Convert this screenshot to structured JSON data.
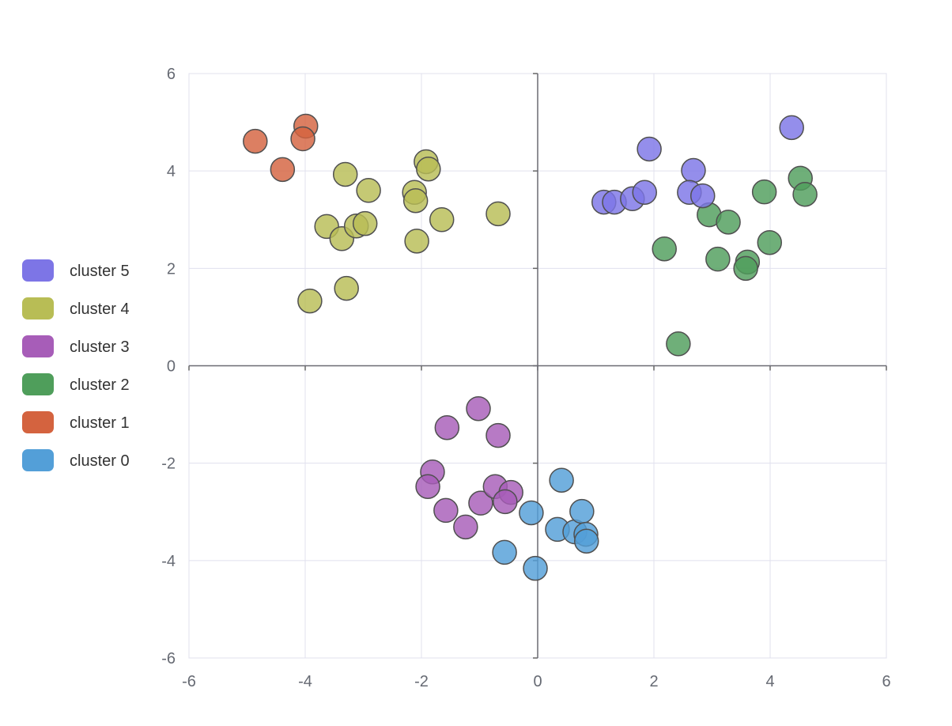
{
  "chart_data": {
    "type": "scatter",
    "title": "",
    "xlabel": "",
    "ylabel": "",
    "xlim": [
      -6,
      6
    ],
    "ylim": [
      -6,
      6
    ],
    "xticks": [
      "-6",
      "-4",
      "-2",
      "0",
      "2",
      "4",
      "6"
    ],
    "yticks": [
      "6",
      "4",
      "2",
      "0",
      "-2",
      "-4",
      "-6"
    ],
    "grid": true,
    "legend_position": "left",
    "series": [
      {
        "name": "cluster 5",
        "color": "#7d75e6",
        "points": [
          [
            1.14,
            3.36
          ],
          [
            1.32,
            3.36
          ],
          [
            1.63,
            3.43
          ],
          [
            1.84,
            3.56
          ],
          [
            1.92,
            4.45
          ],
          [
            2.68,
            4.01
          ],
          [
            2.61,
            3.56
          ],
          [
            2.84,
            3.49
          ],
          [
            4.37,
            4.89
          ]
        ]
      },
      {
        "name": "cluster 4",
        "color": "#b8bd55",
        "points": [
          [
            -3.31,
            3.93
          ],
          [
            -2.91,
            3.6
          ],
          [
            -3.63,
            2.86
          ],
          [
            -3.37,
            2.61
          ],
          [
            -3.12,
            2.87
          ],
          [
            -2.97,
            2.92
          ],
          [
            -3.92,
            1.33
          ],
          [
            -3.29,
            1.59
          ],
          [
            -2.12,
            3.56
          ],
          [
            -2.1,
            3.39
          ],
          [
            -1.92,
            4.19
          ],
          [
            -1.88,
            4.04
          ],
          [
            -2.08,
            2.56
          ],
          [
            -1.65,
            3.0
          ],
          [
            -0.68,
            3.12
          ]
        ]
      },
      {
        "name": "cluster 3",
        "color": "#a75db8",
        "points": [
          [
            -1.02,
            -0.88
          ],
          [
            -1.56,
            -1.27
          ],
          [
            -0.68,
            -1.43
          ],
          [
            -1.81,
            -2.18
          ],
          [
            -1.89,
            -2.48
          ],
          [
            -1.58,
            -2.97
          ],
          [
            -1.24,
            -3.31
          ],
          [
            -0.98,
            -2.82
          ],
          [
            -0.73,
            -2.48
          ],
          [
            -0.46,
            -2.6
          ],
          [
            -0.56,
            -2.79
          ]
        ]
      },
      {
        "name": "cluster 2",
        "color": "#4f9e5b",
        "points": [
          [
            2.18,
            2.4
          ],
          [
            2.95,
            3.1
          ],
          [
            3.28,
            2.95
          ],
          [
            3.1,
            2.19
          ],
          [
            3.61,
            2.13
          ],
          [
            3.58,
            2.0
          ],
          [
            3.9,
            3.57
          ],
          [
            3.99,
            2.53
          ],
          [
            4.52,
            3.85
          ],
          [
            4.6,
            3.52
          ],
          [
            2.42,
            0.45
          ]
        ]
      },
      {
        "name": "cluster 1",
        "color": "#d4633f",
        "points": [
          [
            -4.86,
            4.61
          ],
          [
            -4.39,
            4.03
          ],
          [
            -3.99,
            4.92
          ],
          [
            -4.04,
            4.66
          ]
        ]
      },
      {
        "name": "cluster 0",
        "color": "#539fd8",
        "points": [
          [
            0.41,
            -2.35
          ],
          [
            -0.11,
            -3.02
          ],
          [
            0.34,
            -3.36
          ],
          [
            0.64,
            -3.41
          ],
          [
            0.76,
            -2.99
          ],
          [
            0.83,
            -3.46
          ],
          [
            0.84,
            -3.6
          ],
          [
            -0.57,
            -3.83
          ],
          [
            -0.04,
            -4.16
          ]
        ]
      }
    ]
  }
}
